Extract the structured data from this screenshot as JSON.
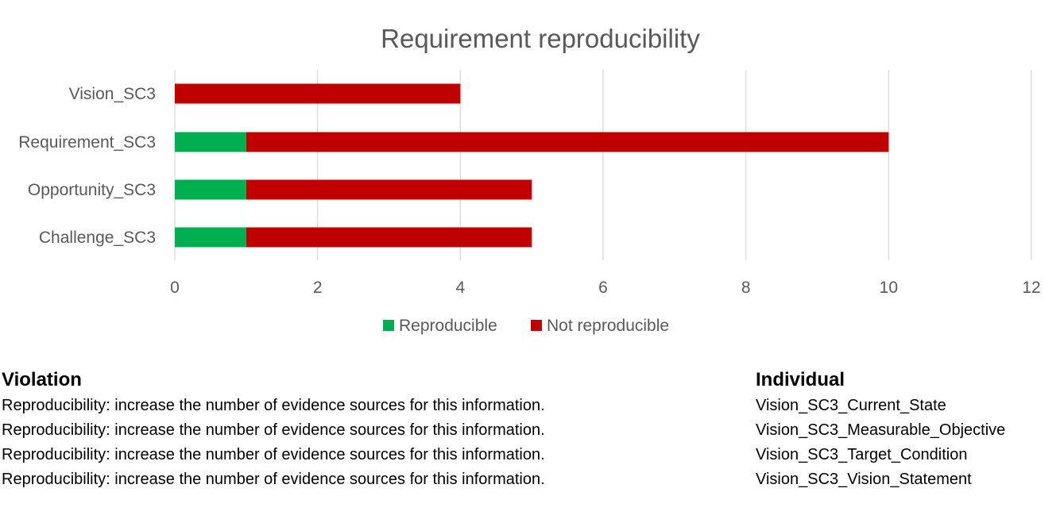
{
  "chart_data": {
    "type": "bar",
    "orientation": "horizontal",
    "stacked": true,
    "title": "Requirement reproducibility",
    "categories": [
      "Vision_SC3",
      "Requirement_SC3",
      "Opportunity_SC3",
      "Challenge_SC3"
    ],
    "series": [
      {
        "name": "Reproducible",
        "color": "#00B050",
        "values": [
          0,
          1,
          1,
          1
        ]
      },
      {
        "name": "Not reproducible",
        "color": "#C00000",
        "values": [
          4,
          9,
          4,
          4
        ]
      }
    ],
    "xlim": [
      0,
      12
    ],
    "xticks": [
      0,
      2,
      4,
      6,
      8,
      10,
      12
    ],
    "grid": "vertical",
    "legend": "bottom"
  },
  "table": {
    "violation_header": "Violation",
    "individual_header": "Individual",
    "rows": [
      {
        "violation": "Reproducibility: increase the number of evidence sources for this information.",
        "individual": "Vision_SC3_Current_State"
      },
      {
        "violation": "Reproducibility: increase the number of evidence sources for this information.",
        "individual": "Vision_SC3_Measurable_Objective"
      },
      {
        "violation": "Reproducibility: increase the number of evidence sources for this information.",
        "individual": "Vision_SC3_Target_Condition"
      },
      {
        "violation": "Reproducibility: increase the number of evidence sources for this information.",
        "individual": "Vision_SC3_Vision_Statement"
      }
    ]
  }
}
